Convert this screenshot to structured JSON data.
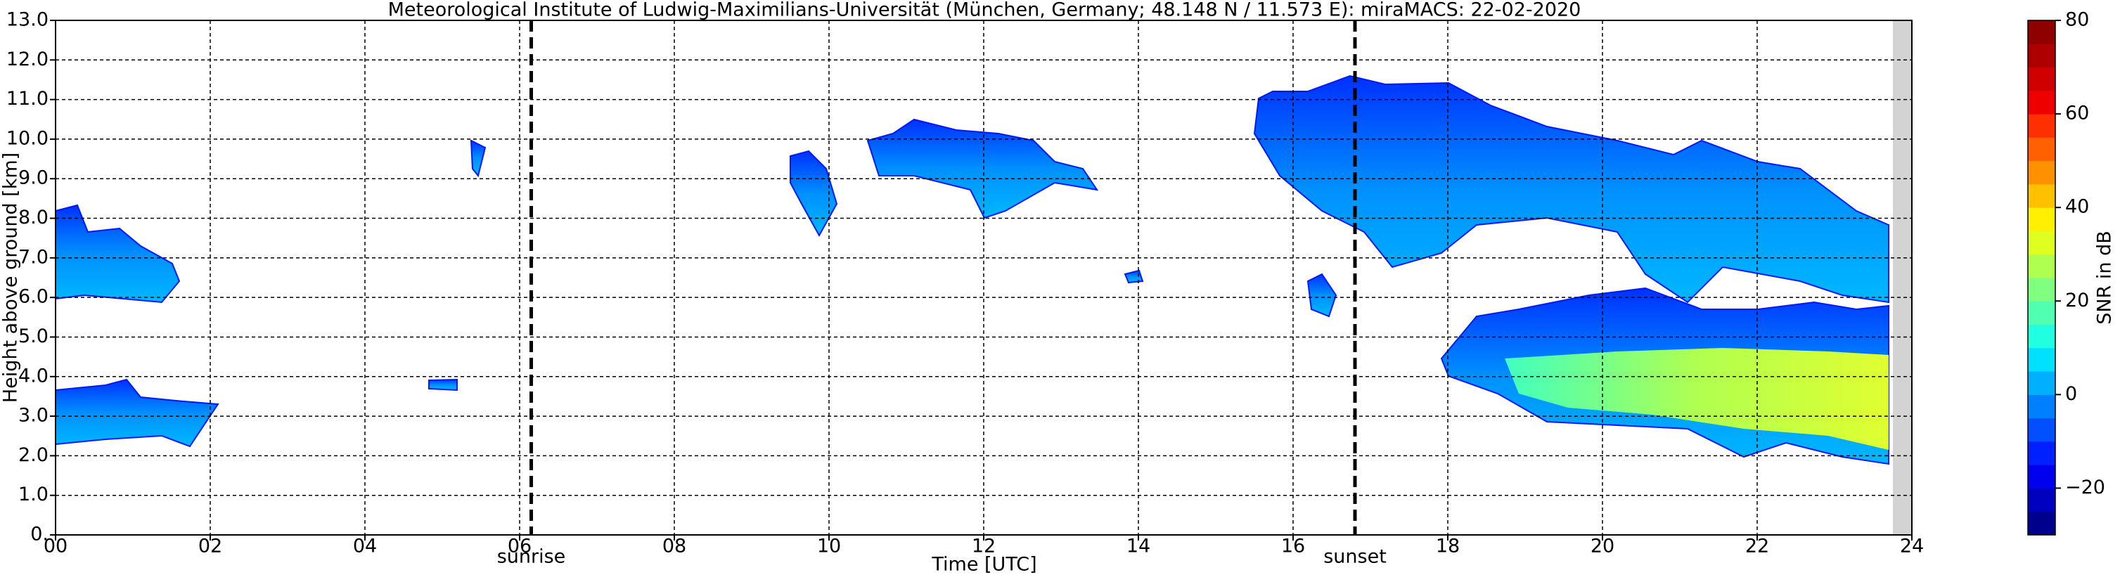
{
  "chart_data": {
    "type": "heatmap",
    "title": "Meteorological Institute of Ludwig-Maximilians-Universität (München, Germany; 48.148 N / 11.573 E):    miraMACS: 22-02-2020",
    "x_label": "Time [UTC]",
    "y_label": "Height above ground [km]",
    "xlim": [
      0,
      24
    ],
    "xticks": [
      {
        "value": 0,
        "label": "00"
      },
      {
        "value": 2,
        "label": "02"
      },
      {
        "value": 4,
        "label": "04"
      },
      {
        "value": 6,
        "label": "06"
      },
      {
        "value": 8,
        "label": "08"
      },
      10,
      12,
      14,
      16,
      18,
      20,
      22,
      24
    ],
    "ylim": [
      0,
      13
    ],
    "yticks": [
      {
        "value": 0,
        "label": "0."
      },
      {
        "value": 1,
        "label": "1.0"
      },
      {
        "value": 2,
        "label": "2.0"
      },
      {
        "value": 3,
        "label": "3.0"
      },
      {
        "value": 4,
        "label": "4.0"
      },
      {
        "value": 5,
        "label": "5.0"
      },
      {
        "value": 6,
        "label": "6.0"
      },
      {
        "value": 7,
        "label": "7.0"
      },
      {
        "value": 8,
        "label": "8.0"
      },
      {
        "value": 9,
        "label": "9.0"
      },
      {
        "value": 10,
        "label": "10.0"
      },
      {
        "value": 11,
        "label": "11.0"
      },
      {
        "value": 12,
        "label": "12.0"
      },
      {
        "value": 13,
        "label": "13.0"
      }
    ],
    "grid": true,
    "vlines": [
      {
        "x": 6.15,
        "label": "sunrise"
      },
      {
        "x": 16.8,
        "label": "sunset"
      }
    ],
    "colorbar": {
      "label": "SNR in dB",
      "lim": [
        -30,
        80
      ],
      "ticks": [
        {
          "value": -20,
          "label": "−20"
        },
        0,
        20,
        40,
        60,
        80
      ],
      "colors": [
        "#00008f",
        "#0000bf",
        "#0000ef",
        "#0020ff",
        "#0050ff",
        "#0080ff",
        "#00b0ff",
        "#00e0ff",
        "#20ffdf",
        "#50ffaf",
        "#80ff80",
        "#afff50",
        "#dfff20",
        "#ffef00",
        "#ffc000",
        "#ff9000",
        "#ff6000",
        "#ff3000",
        "#ef0000",
        "#cf0000",
        "#af0000",
        "#8f0000"
      ]
    }
  }
}
